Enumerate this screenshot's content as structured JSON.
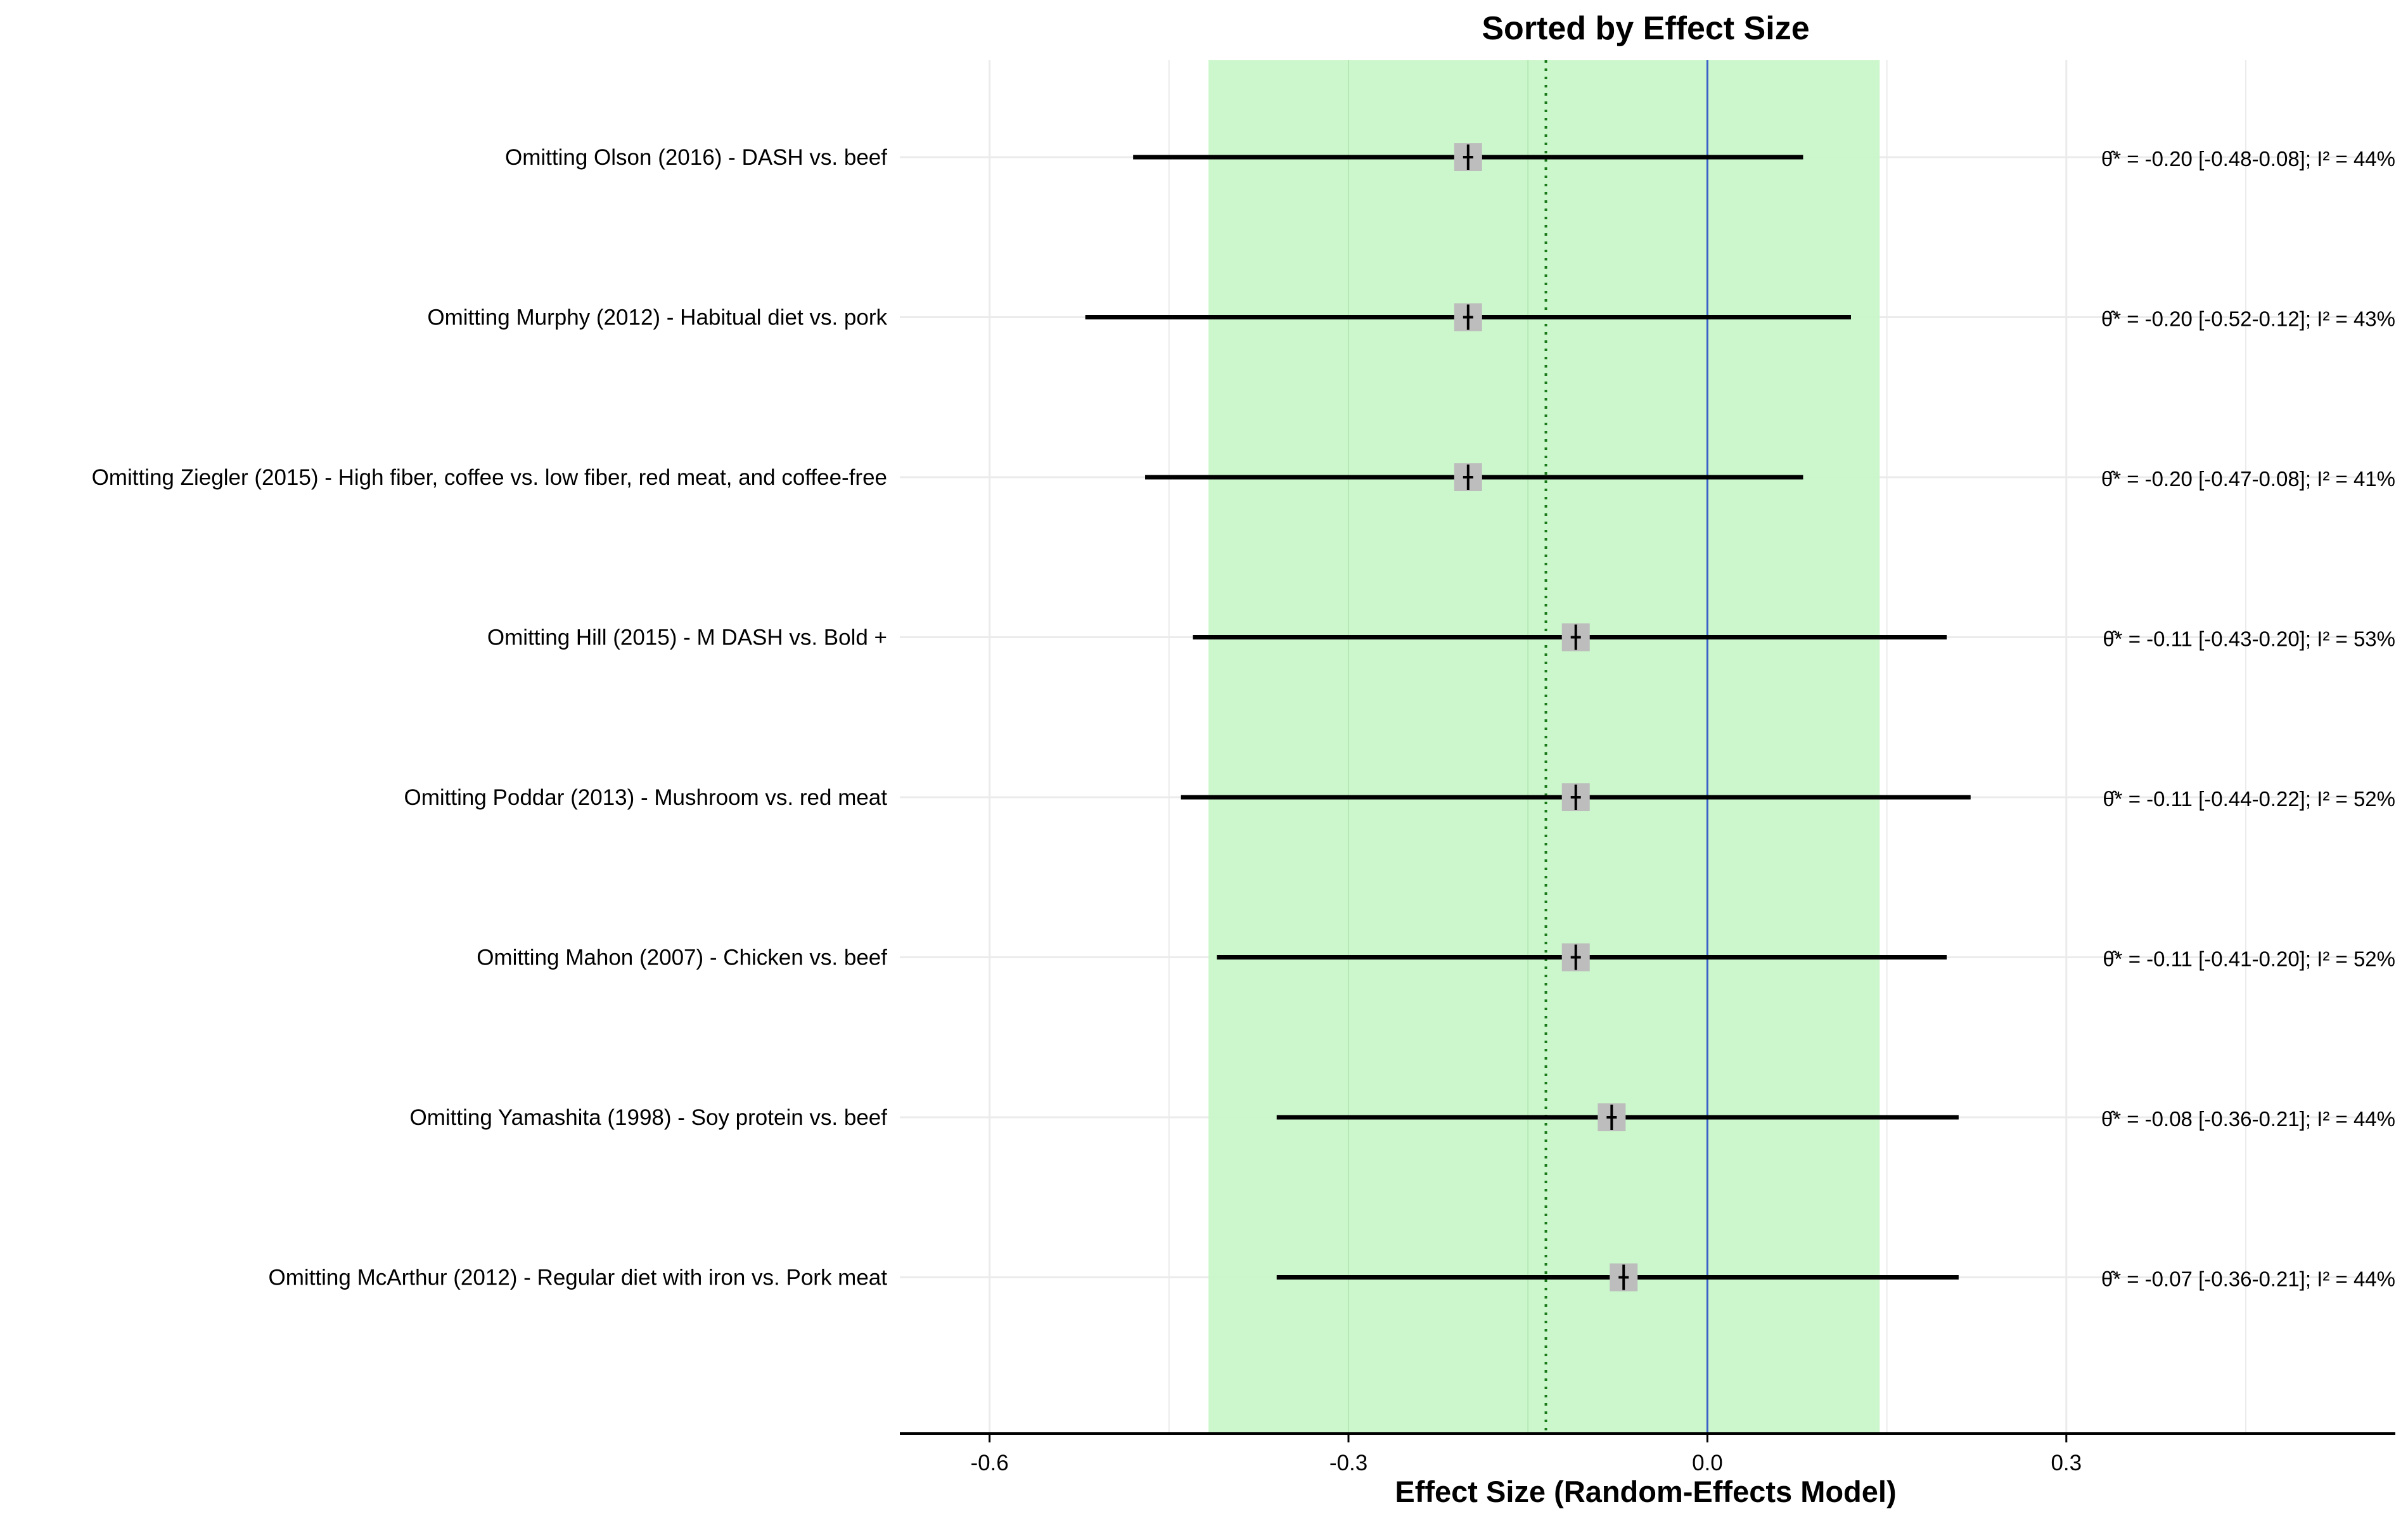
{
  "chart_data": {
    "type": "forest",
    "title": "Sorted by Effect Size",
    "xlabel": "Effect Size (Random-Effects Model)",
    "xlim": [
      -0.675,
      0.575
    ],
    "xticks": [
      -0.6,
      -0.3,
      0.0,
      0.3
    ],
    "xtick_labels": [
      "-0.6",
      "-0.3",
      "0.0",
      "0.3"
    ],
    "minor_gridlines": [
      -0.45,
      -0.15,
      0.15,
      0.45
    ],
    "pooled_ci": [
      -0.417,
      0.144
    ],
    "pooled_estimate": -0.135,
    "null_line": 0.0,
    "stat_prefix": "θ̂* = ",
    "i2_prefix": "; I² = ",
    "rows": [
      {
        "label": "Omitting Olson (2016) - DASH vs. beef",
        "estimate": -0.2,
        "ci_low": -0.48,
        "ci_high": 0.08,
        "stat": "-0.20 [-0.48-0.08]",
        "i2": "44%"
      },
      {
        "label": "Omitting Murphy (2012) - Habitual diet vs. pork",
        "estimate": -0.2,
        "ci_low": -0.52,
        "ci_high": 0.12,
        "stat": "-0.20 [-0.52-0.12]",
        "i2": "43%"
      },
      {
        "label": "Omitting Ziegler (2015) - High fiber, coffee vs. low fiber, red meat, and coffee-free",
        "estimate": -0.2,
        "ci_low": -0.47,
        "ci_high": 0.08,
        "stat": "-0.20 [-0.47-0.08]",
        "i2": "41%"
      },
      {
        "label": "Omitting Hill (2015) - M DASH vs. Bold +",
        "estimate": -0.11,
        "ci_low": -0.43,
        "ci_high": 0.2,
        "stat": "-0.11 [-0.43-0.20]",
        "i2": "53%"
      },
      {
        "label": "Omitting Poddar (2013) - Mushroom vs. red meat",
        "estimate": -0.11,
        "ci_low": -0.44,
        "ci_high": 0.22,
        "stat": "-0.11 [-0.44-0.22]",
        "i2": "52%"
      },
      {
        "label": "Omitting Mahon (2007) - Chicken vs. beef",
        "estimate": -0.11,
        "ci_low": -0.41,
        "ci_high": 0.2,
        "stat": "-0.11 [-0.41-0.20]",
        "i2": "52%"
      },
      {
        "label": "Omitting Yamashita (1998) - Soy protein vs. beef",
        "estimate": -0.08,
        "ci_low": -0.36,
        "ci_high": 0.21,
        "stat": "-0.08 [-0.36-0.21]",
        "i2": "44%"
      },
      {
        "label": "Omitting McArthur (2012) - Regular diet with iron vs. Pork meat",
        "estimate": -0.07,
        "ci_low": -0.36,
        "ci_high": 0.21,
        "stat": "-0.07 [-0.36-0.21]",
        "i2": "44%"
      }
    ],
    "colors": {
      "pooled_band": "#c9f7c9",
      "pooled_line": "#1a7a1a",
      "null_line": "#3a5fc8",
      "point_marker": "#bdbdbd",
      "ci_line": "#000000",
      "grid": "#ebebeb",
      "axis": "#000000"
    }
  }
}
